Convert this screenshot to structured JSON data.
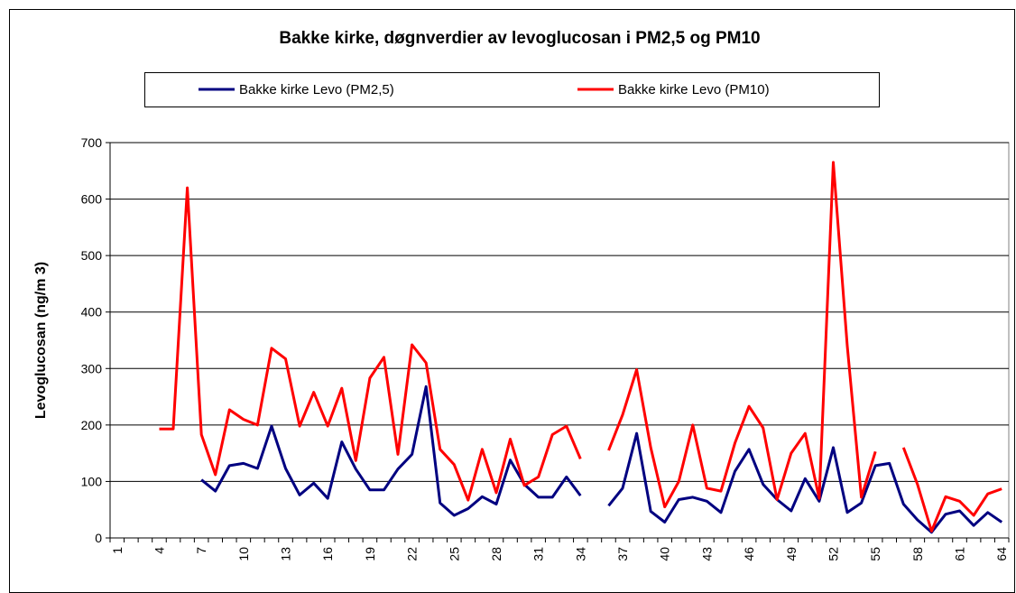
{
  "chart_data": {
    "type": "line",
    "title": "Bakke kirke, døgnverdier av levoglucosan i PM2,5 og PM10",
    "y_label": "Levoglucosan (ng/m 3)",
    "categories": [
      1,
      null,
      null,
      4,
      null,
      null,
      7,
      null,
      null,
      10,
      null,
      null,
      13,
      null,
      null,
      16,
      null,
      null,
      19,
      null,
      null,
      22,
      null,
      null,
      25,
      null,
      null,
      28,
      null,
      null,
      31,
      null,
      null,
      34,
      null,
      null,
      37,
      null,
      null,
      40,
      null,
      null,
      43,
      null,
      null,
      46,
      null,
      null,
      49,
      null,
      null,
      52,
      null,
      null,
      55,
      null,
      null,
      58,
      null,
      null,
      61,
      null,
      null,
      64
    ],
    "series": [
      {
        "name": "Bakke kirke Levo (PM2,5)",
        "color": "#000080",
        "values": [
          null,
          null,
          null,
          null,
          null,
          null,
          103,
          83,
          128,
          132,
          123,
          198,
          123,
          76,
          97,
          70,
          170,
          122,
          85,
          85,
          122,
          148,
          268,
          62,
          40,
          52,
          73,
          60,
          138,
          95,
          72,
          72,
          108,
          75,
          null,
          57,
          88,
          185,
          47,
          28,
          68,
          72,
          65,
          45,
          118,
          157,
          95,
          68,
          48,
          105,
          65,
          160,
          45,
          62,
          128,
          132,
          60,
          32,
          10,
          42,
          48,
          22,
          45,
          28
        ]
      },
      {
        "name": "Bakke kirke Levo (PM10)",
        "color": "#ff0000",
        "values": [
          null,
          null,
          null,
          193,
          193,
          620,
          183,
          112,
          227,
          210,
          200,
          336,
          317,
          198,
          258,
          198,
          265,
          137,
          283,
          320,
          148,
          342,
          310,
          157,
          130,
          67,
          157,
          80,
          175,
          93,
          108,
          183,
          198,
          140,
          null,
          155,
          218,
          298,
          160,
          55,
          100,
          200,
          88,
          83,
          168,
          233,
          195,
          68,
          150,
          185,
          70,
          665,
          340,
          72,
          153,
          null,
          160,
          95,
          12,
          73,
          65,
          40,
          78,
          87
        ]
      }
    ],
    "ylim": [
      0,
      700
    ],
    "yticks": [
      0,
      100,
      200,
      300,
      400,
      500,
      600,
      700
    ],
    "grid": true
  }
}
